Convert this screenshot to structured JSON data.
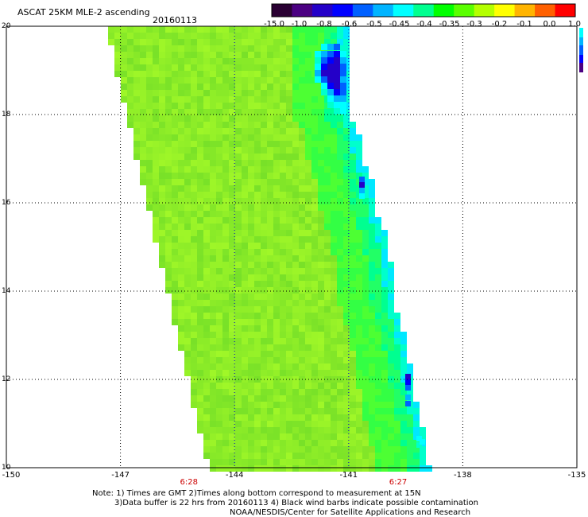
{
  "header": {
    "title": "ASCAT 25KM MLE-2 ascending",
    "date": "20160113"
  },
  "colorbar": {
    "labels": [
      "-15.0",
      "-1.0",
      "-0.8",
      "-0.6",
      "-0.5",
      "-0.45",
      "-0.4",
      "-0.35",
      "-0.3",
      "-0.2",
      "-0.1",
      "0.0",
      "1.0"
    ],
    "colors": [
      "#2a0033",
      "#4b0082",
      "#2400c8",
      "#0000ff",
      "#0060ff",
      "#00b4ff",
      "#00ffff",
      "#00ff90",
      "#00ff00",
      "#5aff00",
      "#b4ff00",
      "#ffff00",
      "#ffb400",
      "#ff6000",
      "#ff0000"
    ]
  },
  "map": {
    "lat_labels": [
      "20",
      "18",
      "16",
      "14",
      "12",
      "10"
    ],
    "lon_labels": [
      "-150",
      "-147",
      "-144",
      "-141",
      "-138",
      "-135"
    ],
    "lat_range": [
      10,
      20
    ],
    "lon_range": [
      -150,
      -135
    ],
    "time_labels": [
      {
        "lon": -145.2,
        "text": "6:28"
      },
      {
        "lon": -139.7,
        "text": "6:27"
      }
    ],
    "swath_color_base": "#8cf532",
    "swath_color_east": "#33ff33"
  },
  "notes": {
    "line1": "Note: 1) Times are GMT 2)Times along bottom correspond to measurement at 15N",
    "line2": "3)Data buffer is 22 hrs from 20160113 4) Black wind barbs indicate possible contamination",
    "line3": "NOAA/NESDIS/Center for Satellite Applications and Research"
  }
}
